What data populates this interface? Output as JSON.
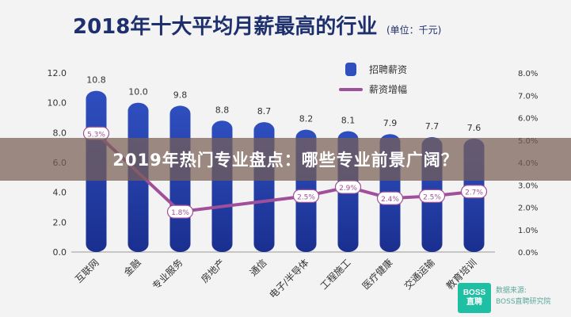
{
  "banner": {
    "text": "2019年热门专业盘点：哪些专业前景广阔？"
  },
  "watermark": {
    "logo_lines": [
      "BOSS",
      "直聘"
    ],
    "source_lines": [
      "数据来源:",
      "BOSS直聘研究院"
    ]
  },
  "colors": {
    "bar_top": "#2f4fbf",
    "bar_bottom": "#1a2f8f",
    "line": "#a0509a",
    "marker_fill": "#ffffff",
    "title": "#1e2f6e",
    "axis_text": "#333333",
    "banner_bg": "#785f55",
    "logo_bg": "#1fbfa3"
  },
  "chart_data": {
    "type": "bar",
    "title": "2018年十大平均月薪最高的行业",
    "subtitle": "(单位：千元)",
    "categories": [
      "互联网",
      "金融",
      "专业服务",
      "房地产",
      "通信",
      "电子/半导体",
      "工程施工",
      "医疗健康",
      "交通运输",
      "教育培训"
    ],
    "series": [
      {
        "name": "招聘薪资",
        "axis": "left",
        "values": [
          10.8,
          10.0,
          9.8,
          8.8,
          8.7,
          8.2,
          8.1,
          7.9,
          7.7,
          7.6
        ]
      },
      {
        "name": "薪资增幅",
        "axis": "right",
        "type": "line",
        "values": [
          5.3,
          null,
          1.8,
          null,
          null,
          2.5,
          2.9,
          2.4,
          2.5,
          2.7
        ],
        "value_labels": [
          "5.3%",
          "",
          "1.8%",
          "",
          "",
          "2.5%",
          "2.9%",
          "2.4%",
          "2.5%",
          "2.7%"
        ]
      }
    ],
    "ylim_left": [
      0,
      12
    ],
    "yticks_left": [
      "0.0",
      "2.0",
      "4.0",
      "6.0",
      "8.0",
      "10.0",
      "12.0"
    ],
    "ylim_right": [
      0,
      8
    ],
    "yticks_right": [
      "0.0%",
      "1.0%",
      "2.0%",
      "3.0%",
      "4.0%",
      "5.0%",
      "6.0%",
      "7.0%",
      "8.0%"
    ],
    "bar_labels": [
      "10.8",
      "10.0",
      "9.8",
      "8.8",
      "8.7",
      "8.2",
      "8.1",
      "7.9",
      "7.7",
      "7.6"
    ],
    "legend_position": "top-right",
    "grid": false
  }
}
